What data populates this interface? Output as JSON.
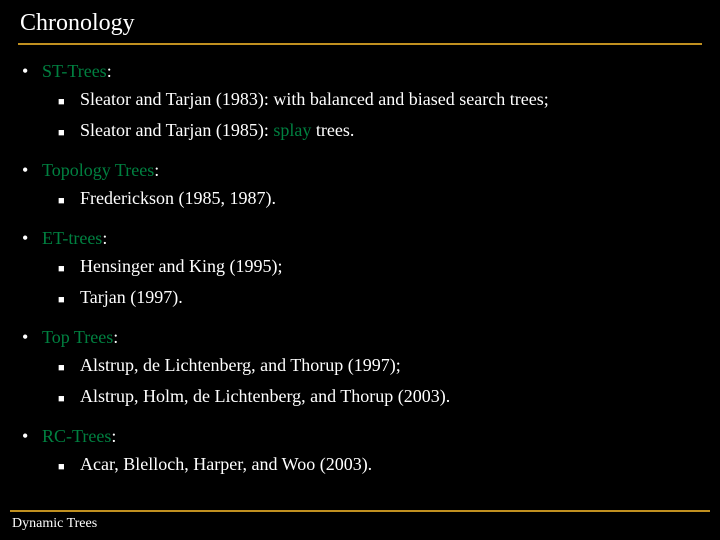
{
  "title": "Chronology",
  "footer": "Dynamic Trees",
  "colors": {
    "background": "#000000",
    "text": "#ffffff",
    "highlight": "#008040",
    "divider": "#c09020"
  },
  "typography": {
    "title_fontsize": 24,
    "body_fontsize": 18,
    "footer_fontsize": 14,
    "font_family": "Georgia, serif"
  },
  "sections": [
    {
      "title": "ST-Trees",
      "items": [
        {
          "prefix": "Sleator and Tarjan (1983): with balanced and biased search trees;",
          "highlight": "",
          "suffix": ""
        },
        {
          "prefix": "Sleator and Tarjan (1985): ",
          "highlight": "splay",
          "suffix": " trees."
        }
      ]
    },
    {
      "title": "Topology Trees",
      "items": [
        {
          "prefix": "Frederickson (1985, 1987).",
          "highlight": "",
          "suffix": ""
        }
      ]
    },
    {
      "title": "ET-trees",
      "items": [
        {
          "prefix": "Hensinger and King (1995);",
          "highlight": "",
          "suffix": ""
        },
        {
          "prefix": "Tarjan (1997).",
          "highlight": "",
          "suffix": ""
        }
      ]
    },
    {
      "title": "Top Trees",
      "items": [
        {
          "prefix": "Alstrup, de Lichtenberg, and Thorup (1997);",
          "highlight": "",
          "suffix": ""
        },
        {
          "prefix": "Alstrup, Holm, de Lichtenberg, and Thorup (2003).",
          "highlight": "",
          "suffix": ""
        }
      ]
    },
    {
      "title": "RC-Trees",
      "items": [
        {
          "prefix": " Acar, Blelloch, Harper, and Woo (2003).",
          "highlight": "",
          "suffix": ""
        }
      ]
    }
  ]
}
